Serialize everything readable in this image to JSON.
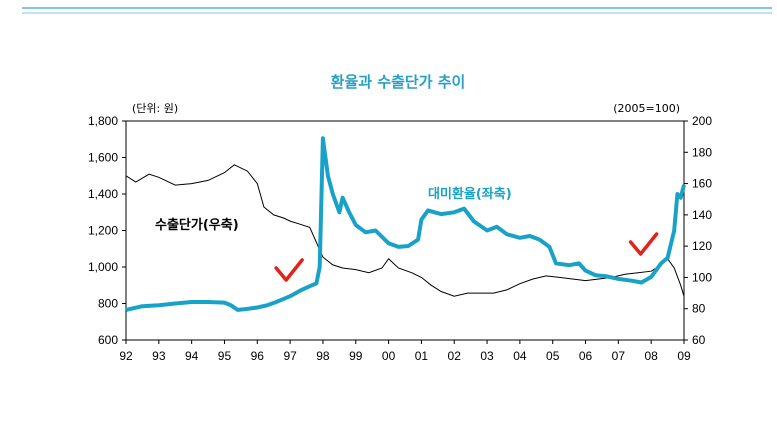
{
  "chart_data": {
    "type": "line",
    "title": "환율과 수출단가 추이",
    "left_unit": "(단위: 원)",
    "right_unit": "(2005=100)",
    "x_tick_labels": [
      "92",
      "93",
      "94",
      "95",
      "96",
      "97",
      "98",
      "99",
      "00",
      "01",
      "02",
      "03",
      "04",
      "05",
      "06",
      "07",
      "08",
      "09"
    ],
    "xlim": [
      1992,
      2009
    ],
    "y_left": {
      "lim": [
        600,
        1800
      ],
      "ticks": [
        "600",
        "800",
        "1,000",
        "1,200",
        "1,400",
        "1,600",
        "1,800"
      ]
    },
    "y_right": {
      "lim": [
        60,
        200
      ],
      "ticks": [
        "60",
        "80",
        "100",
        "120",
        "140",
        "160",
        "180",
        "200"
      ]
    },
    "series": [
      {
        "name": "대미환율(좌축)",
        "axis": "left",
        "color": "#19a2c8",
        "points": [
          [
            1992.0,
            765
          ],
          [
            1992.5,
            785
          ],
          [
            1993.0,
            790
          ],
          [
            1993.5,
            800
          ],
          [
            1994.0,
            808
          ],
          [
            1994.5,
            808
          ],
          [
            1995.0,
            805
          ],
          [
            1995.2,
            790
          ],
          [
            1995.4,
            765
          ],
          [
            1995.6,
            768
          ],
          [
            1996.0,
            778
          ],
          [
            1996.3,
            790
          ],
          [
            1996.6,
            810
          ],
          [
            1997.0,
            840
          ],
          [
            1997.3,
            870
          ],
          [
            1997.6,
            895
          ],
          [
            1997.8,
            910
          ],
          [
            1997.9,
            1000
          ],
          [
            1998.0,
            1705
          ],
          [
            1998.15,
            1500
          ],
          [
            1998.3,
            1400
          ],
          [
            1998.5,
            1300
          ],
          [
            1998.6,
            1380
          ],
          [
            1998.8,
            1300
          ],
          [
            1999.0,
            1230
          ],
          [
            1999.3,
            1190
          ],
          [
            1999.6,
            1200
          ],
          [
            2000.0,
            1130
          ],
          [
            2000.3,
            1110
          ],
          [
            2000.6,
            1115
          ],
          [
            2000.9,
            1150
          ],
          [
            2001.0,
            1260
          ],
          [
            2001.2,
            1310
          ],
          [
            2001.4,
            1300
          ],
          [
            2001.6,
            1290
          ],
          [
            2002.0,
            1300
          ],
          [
            2002.3,
            1320
          ],
          [
            2002.6,
            1250
          ],
          [
            2003.0,
            1200
          ],
          [
            2003.3,
            1220
          ],
          [
            2003.6,
            1180
          ],
          [
            2004.0,
            1160
          ],
          [
            2004.3,
            1170
          ],
          [
            2004.6,
            1150
          ],
          [
            2004.9,
            1110
          ],
          [
            2005.1,
            1020
          ],
          [
            2005.5,
            1010
          ],
          [
            2005.8,
            1020
          ],
          [
            2006.0,
            980
          ],
          [
            2006.3,
            955
          ],
          [
            2006.6,
            950
          ],
          [
            2007.0,
            935
          ],
          [
            2007.4,
            925
          ],
          [
            2007.7,
            915
          ],
          [
            2008.0,
            945
          ],
          [
            2008.3,
            1020
          ],
          [
            2008.5,
            1050
          ],
          [
            2008.7,
            1200
          ],
          [
            2008.8,
            1400
          ],
          [
            2008.9,
            1380
          ],
          [
            2009.0,
            1450
          ]
        ]
      },
      {
        "name": "수출단가(우축)",
        "axis": "right",
        "color": "#000000",
        "points": [
          [
            1992.0,
            165
          ],
          [
            1992.3,
            161
          ],
          [
            1992.7,
            166
          ],
          [
            1993.0,
            164
          ],
          [
            1993.5,
            159
          ],
          [
            1994.0,
            160
          ],
          [
            1994.5,
            162
          ],
          [
            1995.0,
            167
          ],
          [
            1995.3,
            172
          ],
          [
            1995.7,
            168
          ],
          [
            1996.0,
            160
          ],
          [
            1996.2,
            145
          ],
          [
            1996.5,
            140
          ],
          [
            1996.8,
            138
          ],
          [
            1997.0,
            136
          ],
          [
            1997.3,
            134
          ],
          [
            1997.6,
            132
          ],
          [
            1998.0,
            113
          ],
          [
            1998.3,
            108
          ],
          [
            1998.6,
            106
          ],
          [
            1999.0,
            105
          ],
          [
            1999.4,
            103
          ],
          [
            1999.8,
            106
          ],
          [
            2000.0,
            112
          ],
          [
            2000.3,
            106
          ],
          [
            2000.7,
            103
          ],
          [
            2001.0,
            100
          ],
          [
            2001.3,
            95
          ],
          [
            2001.6,
            91
          ],
          [
            2002.0,
            88
          ],
          [
            2002.4,
            90
          ],
          [
            2002.8,
            90
          ],
          [
            2003.2,
            90
          ],
          [
            2003.6,
            92
          ],
          [
            2004.0,
            96
          ],
          [
            2004.4,
            99
          ],
          [
            2004.8,
            101
          ],
          [
            2005.2,
            100
          ],
          [
            2005.6,
            99
          ],
          [
            2006.0,
            98
          ],
          [
            2006.4,
            99
          ],
          [
            2006.8,
            100
          ],
          [
            2007.2,
            102
          ],
          [
            2007.6,
            103
          ],
          [
            2008.0,
            104
          ],
          [
            2008.3,
            108
          ],
          [
            2008.5,
            112
          ],
          [
            2008.7,
            106
          ],
          [
            2008.9,
            95
          ],
          [
            2009.0,
            88
          ]
        ]
      }
    ],
    "annotations": [
      {
        "type": "check-mark",
        "color": "#e0231b",
        "at_x": 1997.0
      },
      {
        "type": "check-mark",
        "color": "#e0231b",
        "at_x": 2007.8
      }
    ]
  }
}
